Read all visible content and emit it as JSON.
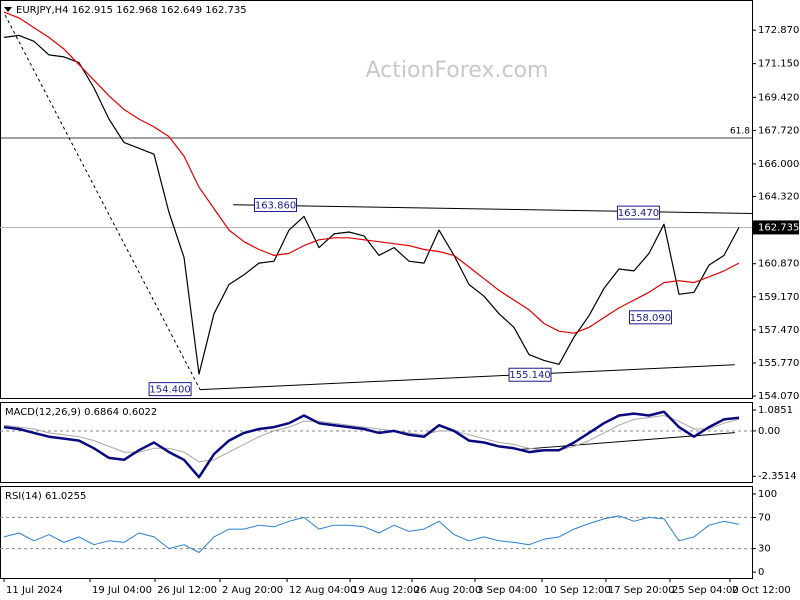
{
  "chart_data": [
    {
      "type": "line",
      "title": "EURJPY,H4  162.915 162.968 162.649 162.735",
      "watermark": "ActionForex.com",
      "xlim": [
        -0.27,
        49.87
      ],
      "ylim": [
        153.97,
        174.37
      ],
      "yticks": [
        {
          "value": 172.87,
          "label": "172.870"
        },
        {
          "value": 171.15,
          "label": "171.150"
        },
        {
          "value": 169.42,
          "label": "169.420"
        },
        {
          "value": 167.72,
          "label": "167.720"
        },
        {
          "value": 166.0,
          "label": "166.000"
        },
        {
          "value": 164.32,
          "label": "164.320"
        },
        {
          "value": 160.87,
          "label": "160.870"
        },
        {
          "value": 159.17,
          "label": "159.170"
        },
        {
          "value": 157.47,
          "label": "157.470"
        },
        {
          "value": 155.77,
          "label": "155.770"
        },
        {
          "value": 154.07,
          "label": "154.070"
        }
      ],
      "series": [
        {
          "color": "#000000",
          "width": 1.2,
          "values": [
            172.5,
            172.6,
            172.3,
            171.6,
            171.5,
            171.2,
            169.9,
            168.3,
            167.1,
            166.8,
            166.5,
            163.5,
            161.2,
            155.2,
            158.3,
            159.8,
            160.3,
            160.9,
            161.0,
            162.6,
            163.3,
            161.7,
            162.4,
            162.5,
            162.3,
            161.3,
            161.7,
            161.0,
            160.9,
            162.6,
            161.3,
            159.8,
            159.2,
            158.3,
            157.6,
            156.2,
            155.9,
            155.7,
            157.1,
            158.2,
            159.6,
            160.6,
            160.5,
            161.4,
            162.9,
            159.3,
            159.4,
            160.8,
            161.3,
            162.735
          ]
        },
        {
          "color": "#e00000",
          "width": 1.2,
          "values": [
            173.8,
            173.5,
            173.0,
            172.5,
            171.9,
            171.1,
            170.3,
            169.5,
            168.8,
            168.3,
            167.9,
            167.4,
            166.4,
            164.8,
            163.7,
            162.6,
            162.0,
            161.6,
            161.3,
            161.4,
            161.8,
            162.1,
            162.2,
            162.2,
            162.1,
            162.0,
            161.9,
            161.8,
            161.6,
            161.5,
            161.3,
            160.7,
            160.1,
            159.5,
            159.0,
            158.5,
            157.8,
            157.4,
            157.3,
            157.6,
            158.1,
            158.6,
            159.0,
            159.4,
            159.9,
            160.0,
            159.9,
            160.2,
            160.5,
            160.9
          ]
        }
      ],
      "last_price": {
        "value": 162.735,
        "label": "162.735"
      },
      "fib": {
        "price": 167.33,
        "label": "61.8"
      },
      "annotations": [
        {
          "x": 18.1,
          "value": 163.86,
          "label": "163.860"
        },
        {
          "x": 42.3,
          "value": 163.47,
          "label": "163.470"
        },
        {
          "x": 43.1,
          "value": 158.09,
          "label": "158.090"
        },
        {
          "x": 11.07,
          "value": 154.4,
          "label": "154.400"
        },
        {
          "x": 35.07,
          "value": 155.14,
          "label": "155.140"
        }
      ],
      "trendlines": [
        {
          "style": "dashed",
          "x": [
            0.07,
            13.07
          ],
          "y": [
            173.65,
            154.4
          ]
        },
        {
          "style": "solid",
          "x": [
            15.27,
            49.87
          ],
          "y": [
            163.9,
            163.45
          ]
        },
        {
          "style": "solid",
          "x": [
            13.07,
            48.73
          ],
          "y": [
            154.4,
            155.68
          ]
        }
      ]
    },
    {
      "type": "line",
      "title": "MACD(12,26,9) 0.6864 0.6022",
      "xlim": [
        -0.27,
        49.87
      ],
      "ylim": [
        -2.65,
        1.45
      ],
      "yticks": [
        {
          "value": 1.0851,
          "label": "1.0851"
        },
        {
          "value": 0,
          "label": "0.00"
        },
        {
          "value": -2.3514,
          "label": "-2.3514"
        }
      ],
      "levels": [
        0
      ],
      "series": [
        {
          "color": "#a8a8a8",
          "width": 1,
          "values": [
            0.3,
            0.2,
            0.1,
            -0.1,
            -0.2,
            -0.3,
            -0.5,
            -0.8,
            -1.1,
            -1.1,
            -0.9,
            -0.9,
            -1.1,
            -1.6,
            -1.5,
            -1.1,
            -0.7,
            -0.3,
            0.0,
            0.2,
            0.5,
            0.5,
            0.4,
            0.3,
            0.2,
            0.1,
            0.0,
            -0.1,
            -0.2,
            0.0,
            0.0,
            -0.2,
            -0.4,
            -0.6,
            -0.7,
            -0.9,
            -1.0,
            -1.0,
            -0.8,
            -0.5,
            -0.1,
            0.3,
            0.6,
            0.7,
            0.8,
            0.5,
            0.1,
            0.1,
            0.4,
            0.6022
          ]
        },
        {
          "color": "#0a0a80",
          "width": 2.5,
          "values": [
            0.2,
            0.1,
            -0.1,
            -0.3,
            -0.4,
            -0.5,
            -0.9,
            -1.4,
            -1.5,
            -1.0,
            -0.6,
            -1.1,
            -1.5,
            -2.4,
            -1.2,
            -0.5,
            -0.1,
            0.1,
            0.2,
            0.4,
            0.8,
            0.4,
            0.3,
            0.2,
            0.1,
            -0.1,
            0.0,
            -0.2,
            -0.3,
            0.3,
            0.0,
            -0.5,
            -0.6,
            -0.8,
            -0.9,
            -1.1,
            -1.0,
            -1.0,
            -0.6,
            -0.1,
            0.4,
            0.8,
            0.9,
            0.8,
            1.0,
            0.2,
            -0.3,
            0.2,
            0.6,
            0.6864
          ]
        }
      ],
      "trendlines": [
        {
          "style": "solid",
          "x": [
            34.4,
            48.73
          ],
          "y": [
            -0.96,
            -0.09
          ]
        }
      ]
    },
    {
      "type": "line",
      "title": "RSI(14) 61.0255",
      "xlim": [
        -0.27,
        49.87
      ],
      "ylim": [
        -7.6,
        108.9
      ],
      "yticks": [
        100,
        70,
        30,
        0
      ],
      "levels": [
        70,
        30
      ],
      "series": [
        {
          "color": "#2a7fd0",
          "width": 1,
          "values": [
            45,
            50,
            40,
            48,
            38,
            45,
            35,
            40,
            38,
            50,
            45,
            30,
            35,
            25,
            45,
            55,
            55,
            60,
            58,
            65,
            70,
            55,
            60,
            60,
            58,
            50,
            60,
            52,
            55,
            65,
            48,
            40,
            45,
            40,
            38,
            35,
            42,
            45,
            55,
            62,
            68,
            72,
            65,
            70,
            68,
            40,
            45,
            60,
            65,
            61.0255
          ]
        }
      ],
      "xticks": [
        {
          "value": 0,
          "label": "11 Jul 2024"
        },
        {
          "value": 5.73,
          "label": "19 Jul 04:00"
        },
        {
          "value": 10.07,
          "label": "26 Jul 12:00"
        },
        {
          "value": 14.4,
          "label": "2 Aug 20:00"
        },
        {
          "value": 18.87,
          "label": "12 Aug 04:00"
        },
        {
          "value": 23.07,
          "label": "19 Aug 12:00"
        },
        {
          "value": 27.2,
          "label": "26 Aug 20:00"
        },
        {
          "value": 31.4,
          "label": "3 Sep 04:00"
        },
        {
          "value": 35.87,
          "label": "10 Sep 12:00"
        },
        {
          "value": 40.13,
          "label": "17 Sep 20:00"
        },
        {
          "value": 44.4,
          "label": "25 Sep 04:00"
        },
        {
          "value": 48.4,
          "label": "2 Oct 12:00"
        }
      ]
    }
  ]
}
